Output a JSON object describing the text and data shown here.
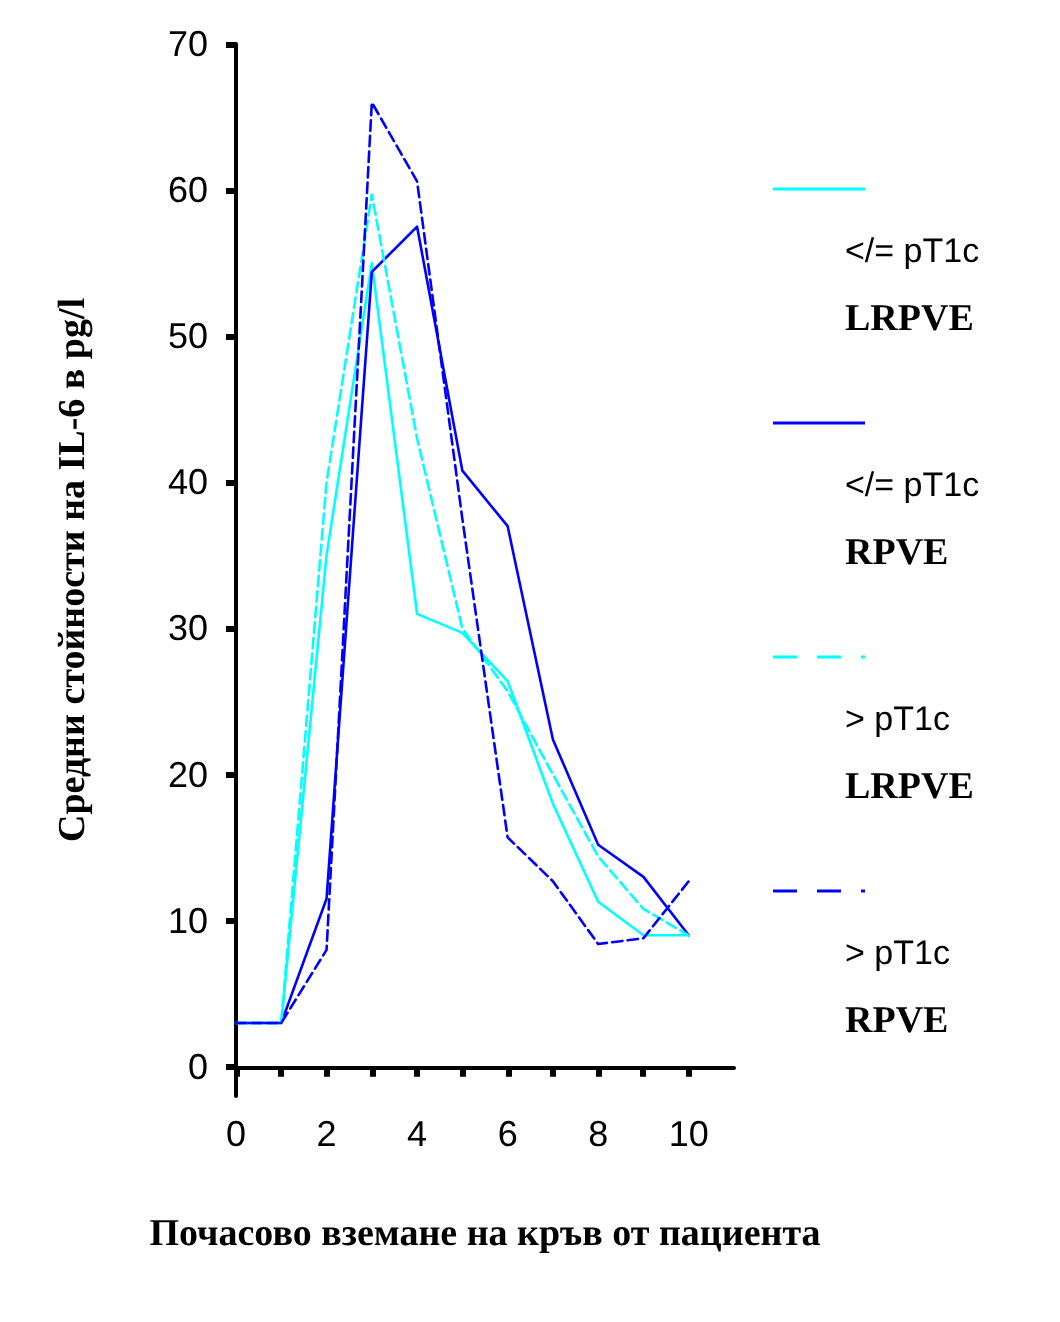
{
  "chart_data": {
    "type": "line",
    "xlabel": "Почасово вземане на кръв от пациента",
    "ylabel": "Средни стойности на IL-6 в pg/l",
    "x": [
      0,
      1,
      2,
      3,
      4,
      5,
      6,
      7,
      8,
      9,
      10
    ],
    "series": [
      {
        "name": "</= pT1c LRPVE",
        "color": "#00ffff",
        "line_style": "solid",
        "values": [
          3,
          3,
          35,
          55,
          31,
          29.7,
          26.4,
          18,
          11.3,
          9,
          9
        ]
      },
      {
        "name": "</= pT1c RPVE",
        "color": "#0000ff",
        "line_style": "solid",
        "values": [
          3,
          3,
          11.5,
          54.4,
          57.5,
          40.8,
          37,
          22.4,
          15.2,
          13,
          9
        ]
      },
      {
        "name": "> pT1c LRPVE",
        "color": "#00ffff",
        "line_style": "dashed",
        "values": [
          3,
          3,
          40,
          59.7,
          43,
          30,
          25.7,
          20,
          14.4,
          10.8,
          9
        ]
      },
      {
        "name": "> pT1c RPVE",
        "color": "#0000ff",
        "line_style": "dashed",
        "values": [
          3,
          3,
          8,
          66,
          60.6,
          37.5,
          15.7,
          12.7,
          8.4,
          8.8,
          12.7
        ]
      }
    ],
    "xlim": [
      0,
      11
    ],
    "xticks": [
      0,
      {
        "value": 1,
        "label": null
      },
      2,
      {
        "value": 3,
        "label": null
      },
      4,
      {
        "value": 5,
        "label": null
      },
      6,
      {
        "value": 7,
        "label": null
      },
      8,
      {
        "value": 9,
        "label": null
      },
      10
    ],
    "ylim": [
      -2,
      70
    ],
    "yticks": [
      0,
      10,
      20,
      30,
      40,
      50,
      60,
      70
    ],
    "grid": false,
    "legend": "right",
    "marker": "none"
  }
}
